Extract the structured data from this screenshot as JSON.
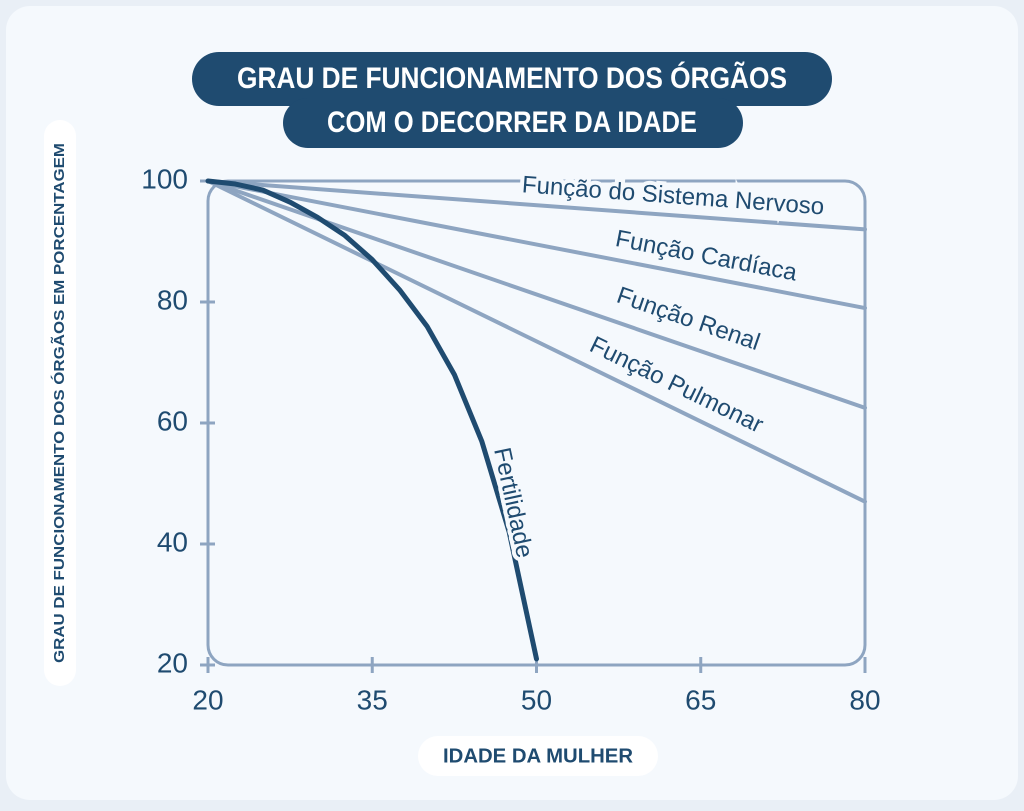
{
  "chart_data": {
    "type": "line",
    "title": [
      "GRAU DE FUNCIONAMENTO DOS ÓRGÃOS",
      "COM O DECORRER DA IDADE"
    ],
    "x_label": "IDADE DA MULHER",
    "y_label": "GRAU DE FUNCIONAMENTO DOS ÓRGÃOS EM PORCENTAGEM",
    "xlim": [
      20,
      80
    ],
    "ylim": [
      20,
      100
    ],
    "xticks": [
      20,
      35,
      50,
      65,
      80
    ],
    "yticks": [
      20,
      40,
      60,
      80,
      100
    ],
    "series": [
      {
        "name": "Função do Sistema Nervoso",
        "color": "#8ea5c1",
        "x": [
          20,
          80
        ],
        "values": [
          100,
          92
        ]
      },
      {
        "name": "Função Cardíaca",
        "color": "#8ea5c1",
        "x": [
          20,
          80
        ],
        "values": [
          100,
          79
        ]
      },
      {
        "name": "Função Renal",
        "color": "#8ea5c1",
        "x": [
          20,
          80
        ],
        "values": [
          100,
          62.5
        ]
      },
      {
        "name": "Função Pulmonar",
        "color": "#8ea5c1",
        "x": [
          20,
          80
        ],
        "values": [
          100,
          47
        ]
      },
      {
        "name": "Fertilidade",
        "color": "#1f4b70",
        "x": [
          20,
          22.5,
          25,
          27.5,
          30,
          32.5,
          35,
          37.5,
          40,
          42.5,
          45,
          47.5,
          50
        ],
        "values": [
          100,
          99.5,
          98.5,
          96.5,
          94,
          91,
          87,
          82,
          76,
          68,
          57,
          42,
          21
        ]
      }
    ]
  }
}
